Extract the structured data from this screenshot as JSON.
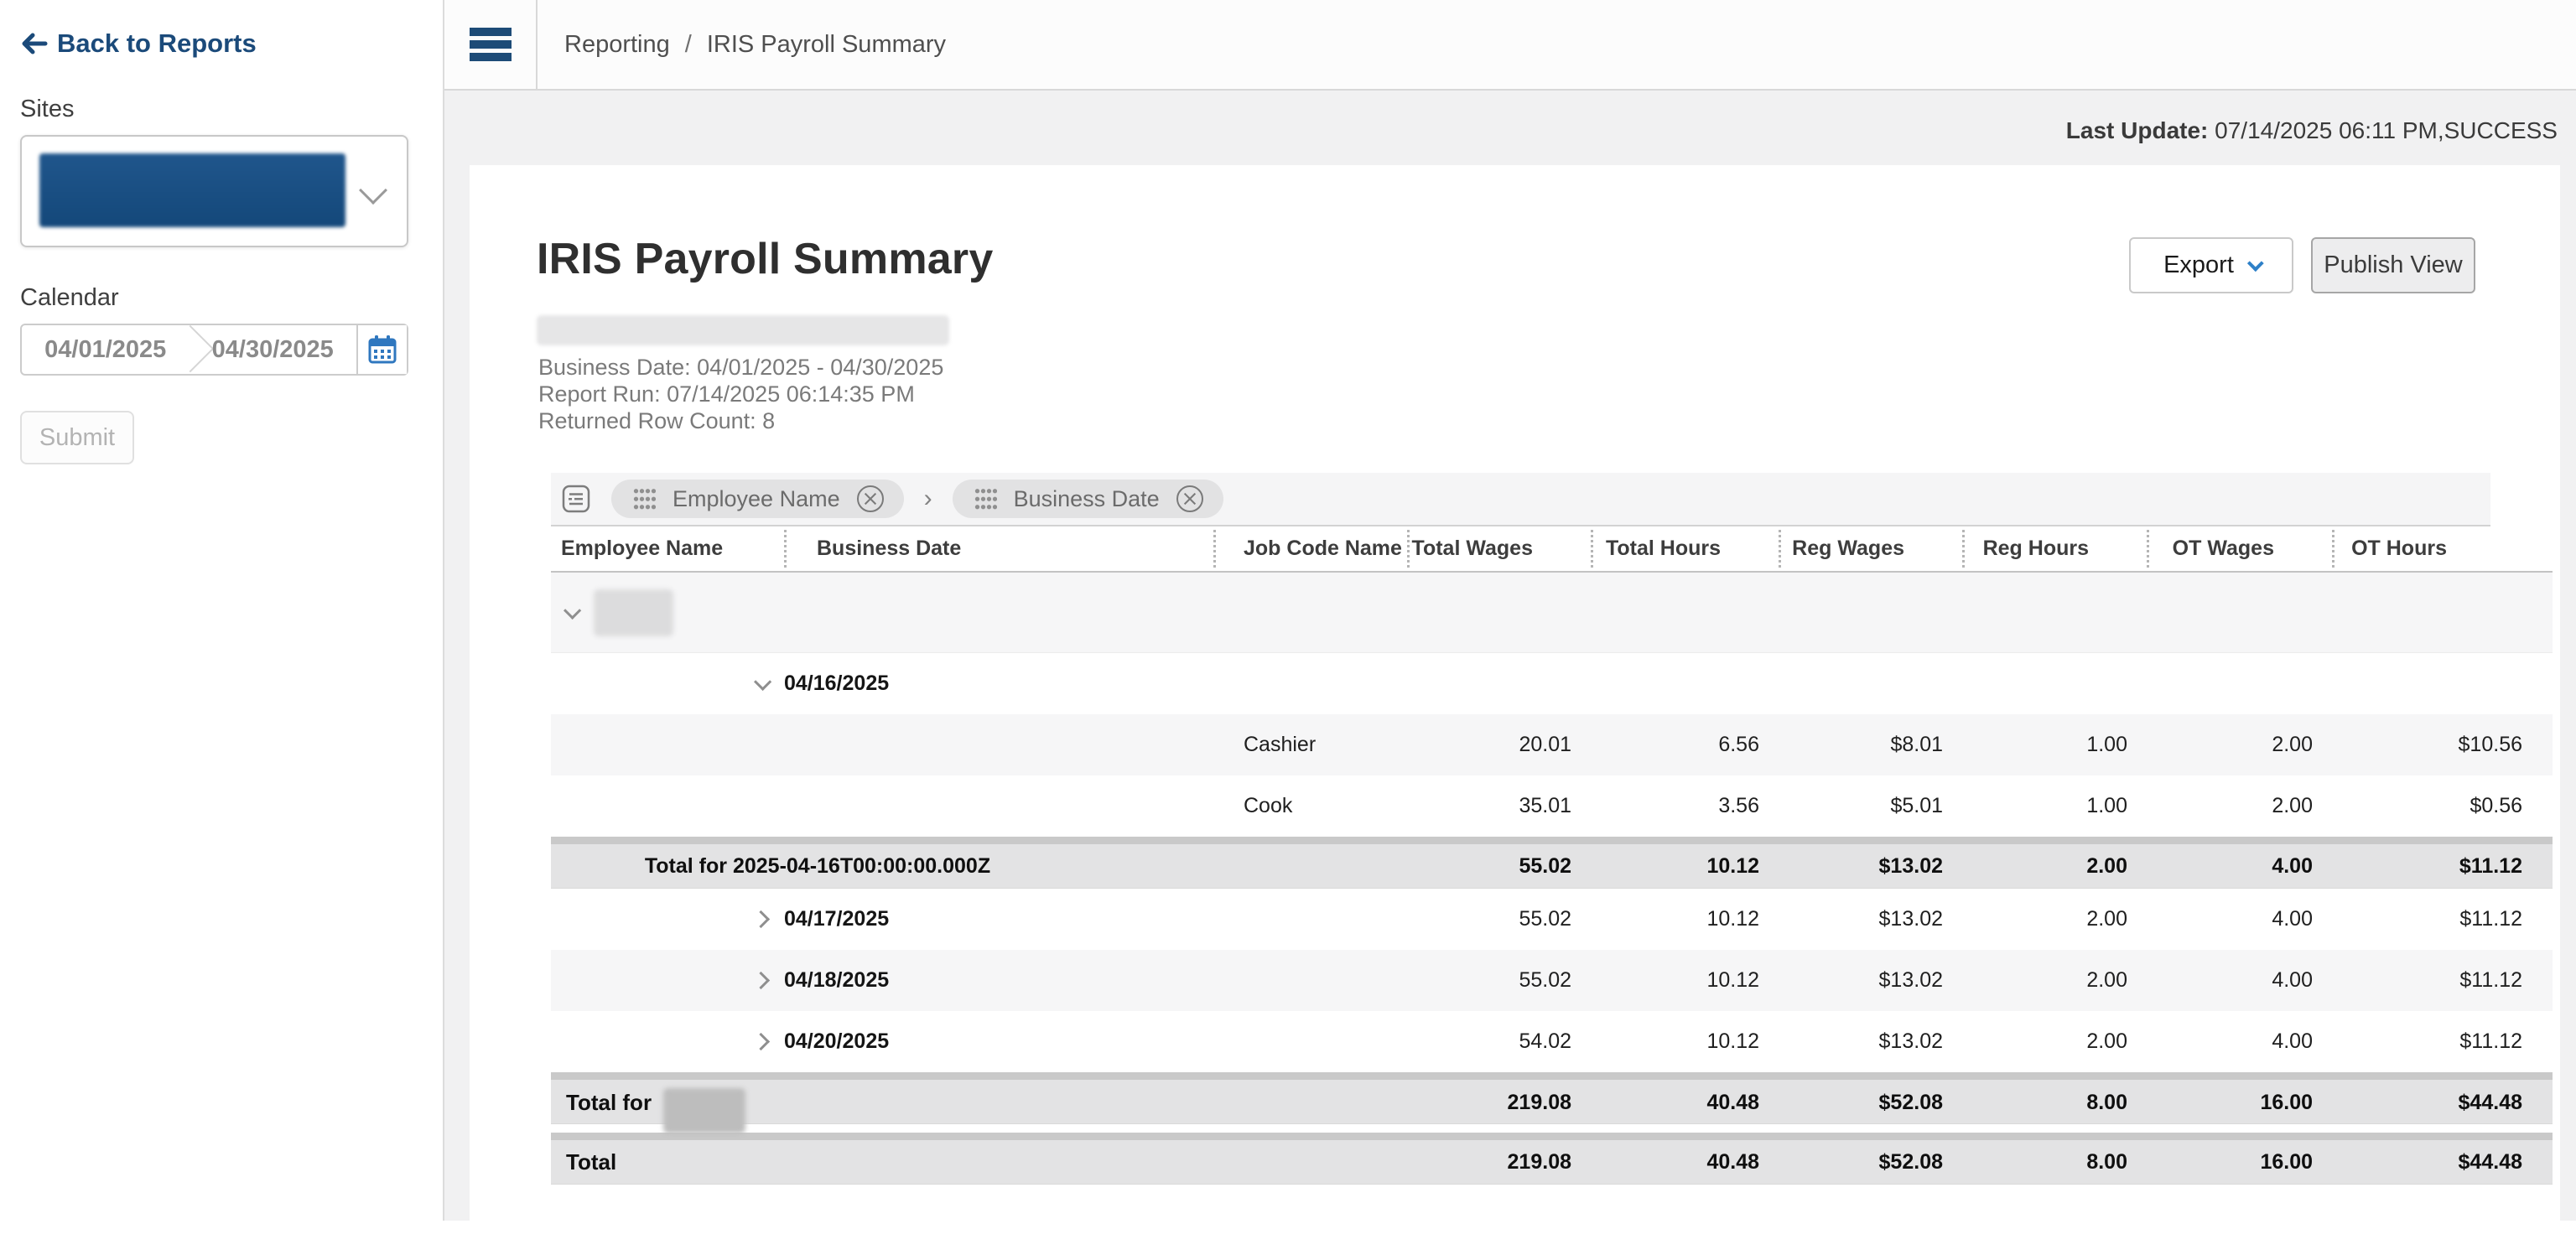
{
  "sidebar": {
    "back_label": "Back to Reports",
    "sites_label": "Sites",
    "calendar_label": "Calendar",
    "date_start": "04/01/2025",
    "date_end": "04/30/2025",
    "submit_label": "Submit"
  },
  "topbar": {
    "breadcrumb_parent": "Reporting",
    "breadcrumb_separator": "/",
    "breadcrumb_current": "IRIS Payroll Summary"
  },
  "status": {
    "last_update_label": "Last Update:",
    "last_update_value": "07/14/2025 06:11 PM,SUCCESS"
  },
  "report": {
    "title": "IRIS Payroll Summary",
    "business_date_line": "Business Date: 04/01/2025 - 04/30/2025",
    "report_run_line": "Report Run: 07/14/2025 06:14:35 PM",
    "row_count_line": "Returned Row Count: 8",
    "export_label": "Export",
    "publish_label": "Publish View"
  },
  "grouping": {
    "chips": [
      {
        "label": "Employee Name"
      },
      {
        "label": "Business Date"
      }
    ],
    "separator": "›"
  },
  "colors": {
    "brand_blue": "#1d4b77",
    "link_blue": "#1b4a7a",
    "chevron_blue": "#2e80c8",
    "calendar_blue": "#2f77bf"
  },
  "table": {
    "columns": [
      "Employee Name",
      "Business Date",
      "Job Code Name",
      "Total Wages",
      "Total Hours",
      "Reg Wages",
      "Reg Hours",
      "OT Wages",
      "OT Hours"
    ],
    "rows": [
      {
        "type": "employee-group",
        "expanded": true,
        "label_redacted": true,
        "shade": "gray"
      },
      {
        "type": "date-group",
        "expanded": true,
        "label": "04/16/2025",
        "values": null,
        "shade": "white"
      },
      {
        "type": "data",
        "job_code": "Cashier",
        "values": [
          "20.01",
          "6.56",
          "$8.01",
          "1.00",
          "2.00",
          "$10.56"
        ],
        "shade": "gray"
      },
      {
        "type": "data",
        "job_code": "Cook",
        "values": [
          "35.01",
          "3.56",
          "$5.01",
          "1.00",
          "2.00",
          "$0.56"
        ],
        "shade": "white"
      },
      {
        "type": "subtotal-date",
        "label": "Total for 2025-04-16T00:00:00.000Z",
        "values": [
          "55.02",
          "10.12",
          "$13.02",
          "2.00",
          "4.00",
          "$11.12"
        ]
      },
      {
        "type": "date-group",
        "expanded": false,
        "label": "04/17/2025",
        "values": [
          "55.02",
          "10.12",
          "$13.02",
          "2.00",
          "4.00",
          "$11.12"
        ],
        "shade": "white"
      },
      {
        "type": "date-group",
        "expanded": false,
        "label": "04/18/2025",
        "values": [
          "55.02",
          "10.12",
          "$13.02",
          "2.00",
          "4.00",
          "$11.12"
        ],
        "shade": "gray"
      },
      {
        "type": "date-group",
        "expanded": false,
        "label": "04/20/2025",
        "values": [
          "54.02",
          "10.12",
          "$13.02",
          "2.00",
          "4.00",
          "$11.12"
        ],
        "shade": "white"
      },
      {
        "type": "subtotal-employee",
        "label": "Total for",
        "label_redacted": true,
        "values": [
          "219.08",
          "40.48",
          "$52.08",
          "8.00",
          "16.00",
          "$44.48"
        ]
      },
      {
        "type": "grand-total",
        "label": "Total",
        "values": [
          "219.08",
          "40.48",
          "$52.08",
          "8.00",
          "16.00",
          "$44.48"
        ]
      }
    ]
  }
}
